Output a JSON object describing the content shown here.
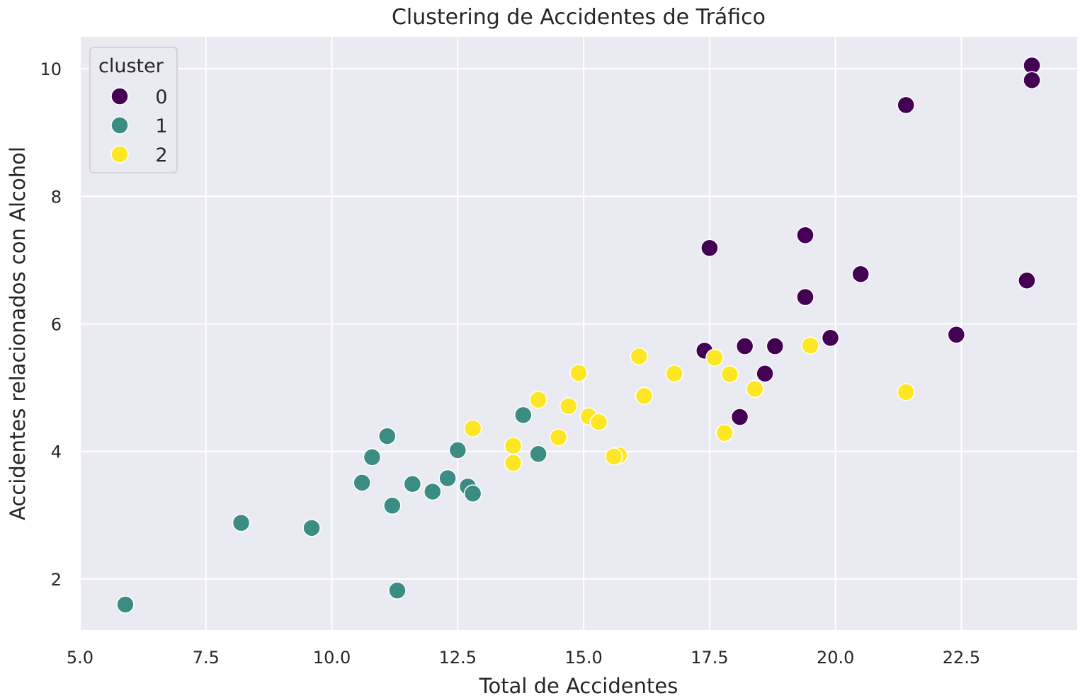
{
  "chart_data": {
    "type": "scatter",
    "title": "Clustering de Accidentes de Tráfico",
    "xlabel": "Total de Accidentes",
    "ylabel": "Accidentes relacionados con Alcohol",
    "xlim": [
      5.0,
      24.8
    ],
    "ylim": [
      1.2,
      10.5
    ],
    "xticks": [
      5.0,
      7.5,
      10.0,
      12.5,
      15.0,
      17.5,
      20.0,
      22.5
    ],
    "xtick_labels": [
      "5.0",
      "7.5",
      "10.0",
      "12.5",
      "15.0",
      "17.5",
      "20.0",
      "22.5"
    ],
    "yticks": [
      2,
      4,
      6,
      8,
      10
    ],
    "ytick_labels": [
      "2",
      "4",
      "6",
      "8",
      "10"
    ],
    "grid": true,
    "legend": {
      "title": "cluster",
      "placement": "top-left",
      "entries": [
        "0",
        "1",
        "2"
      ]
    },
    "series": [
      {
        "name": "0",
        "color": "#440154",
        "points": [
          [
            23.9,
            10.05
          ],
          [
            23.9,
            9.82
          ],
          [
            21.4,
            9.43
          ],
          [
            19.4,
            7.39
          ],
          [
            17.5,
            7.19
          ],
          [
            20.5,
            6.78
          ],
          [
            23.8,
            6.68
          ],
          [
            19.4,
            6.42
          ],
          [
            22.4,
            5.83
          ],
          [
            19.9,
            5.78
          ],
          [
            18.2,
            5.65
          ],
          [
            18.8,
            5.65
          ],
          [
            17.4,
            5.58
          ],
          [
            18.6,
            5.22
          ],
          [
            18.1,
            4.54
          ]
        ]
      },
      {
        "name": "1",
        "color": "#3b8d84",
        "points": [
          [
            13.8,
            4.57
          ],
          [
            11.1,
            4.24
          ],
          [
            12.5,
            4.02
          ],
          [
            14.1,
            3.96
          ],
          [
            10.8,
            3.91
          ],
          [
            12.3,
            3.58
          ],
          [
            10.6,
            3.51
          ],
          [
            11.6,
            3.49
          ],
          [
            12.7,
            3.45
          ],
          [
            12.0,
            3.37
          ],
          [
            12.8,
            3.34
          ],
          [
            11.2,
            3.15
          ],
          [
            8.2,
            2.88
          ],
          [
            9.6,
            2.8
          ],
          [
            11.3,
            1.82
          ],
          [
            5.9,
            1.6
          ]
        ]
      },
      {
        "name": "2",
        "color": "#fde725",
        "points": [
          [
            19.5,
            5.66
          ],
          [
            16.1,
            5.49
          ],
          [
            17.6,
            5.47
          ],
          [
            14.9,
            5.23
          ],
          [
            16.8,
            5.22
          ],
          [
            17.9,
            5.21
          ],
          [
            18.4,
            4.98
          ],
          [
            21.4,
            4.93
          ],
          [
            16.2,
            4.87
          ],
          [
            14.1,
            4.81
          ],
          [
            14.7,
            4.71
          ],
          [
            15.1,
            4.55
          ],
          [
            15.3,
            4.46
          ],
          [
            12.8,
            4.36
          ],
          [
            17.8,
            4.29
          ],
          [
            14.5,
            4.22
          ],
          [
            13.6,
            4.09
          ],
          [
            15.7,
            3.94
          ],
          [
            15.6,
            3.92
          ],
          [
            13.6,
            3.82
          ]
        ]
      }
    ]
  }
}
